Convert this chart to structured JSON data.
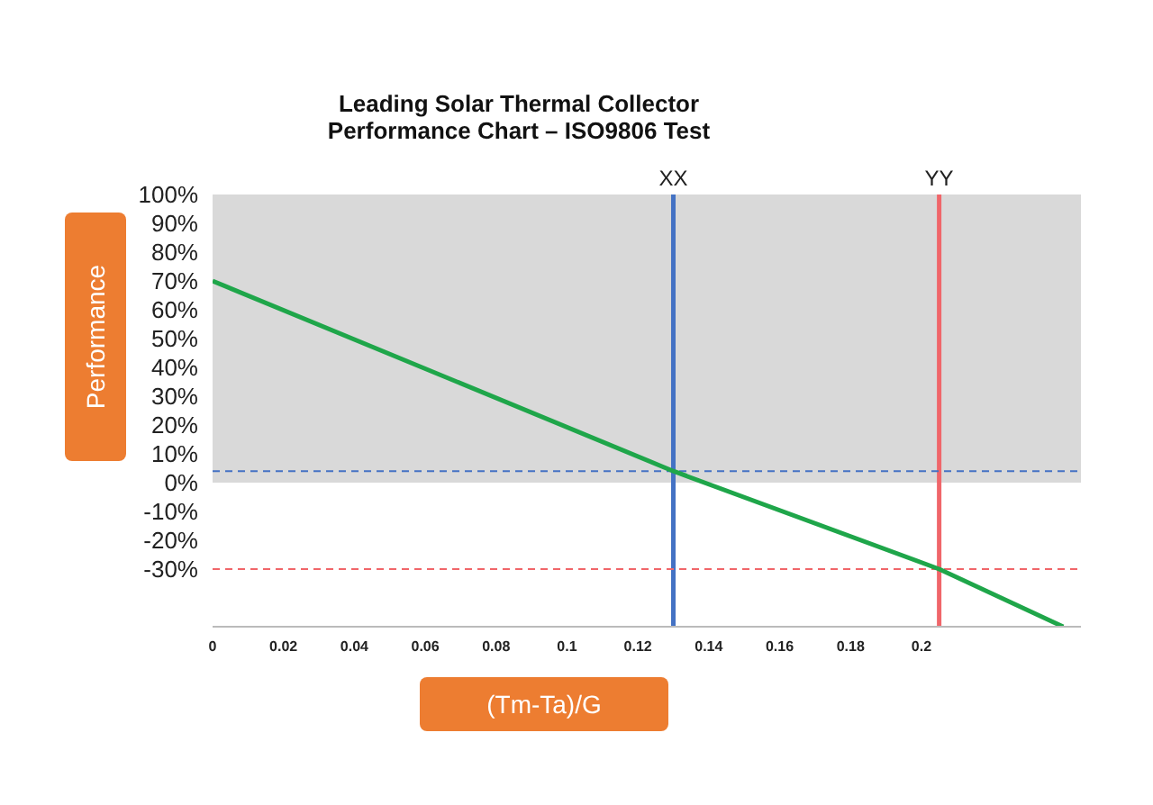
{
  "chart_data": {
    "type": "line",
    "title": "Leading Solar Thermal Collector\nPerformance Chart – ISO9806 Test",
    "xlabel": "(Tm-Ta)/G",
    "ylabel": "Performance",
    "x": [
      0,
      0.13,
      0.205,
      0.24
    ],
    "series": [
      {
        "color": "#1fa64a",
        "values": [
          70,
          4,
          -30,
          -50
        ]
      }
    ],
    "xlim": [
      0,
      0.245
    ],
    "xticks": [
      0,
      0.02,
      0.04,
      0.06,
      0.08,
      0.1,
      0.12,
      0.14,
      0.16,
      0.18,
      0.2
    ],
    "ylim": [
      -50,
      100
    ],
    "yticks": [
      {
        "value": -30,
        "label": "-30%"
      },
      {
        "value": -20,
        "label": "-20%"
      },
      {
        "value": -10,
        "label": "-10%"
      },
      {
        "value": 0,
        "label": "0%"
      },
      {
        "value": 10,
        "label": "10%"
      },
      {
        "value": 20,
        "label": "20%"
      },
      {
        "value": 30,
        "label": "30%"
      },
      {
        "value": 40,
        "label": "40%"
      },
      {
        "value": 50,
        "label": "50%"
      },
      {
        "value": 60,
        "label": "60%"
      },
      {
        "value": 70,
        "label": "70%"
      },
      {
        "value": 80,
        "label": "80%"
      },
      {
        "value": 90,
        "label": "90%"
      },
      {
        "value": 100,
        "label": "100%"
      }
    ],
    "ref_lines": [
      {
        "axis": "x",
        "value": 0.13,
        "label": "XX",
        "color": "#4472c4",
        "line_style": "solid"
      },
      {
        "axis": "x",
        "value": 0.205,
        "label": "YY",
        "color": "#f0666a",
        "line_style": "solid"
      },
      {
        "axis": "y",
        "value": 4,
        "color": "#4472c4",
        "line_style": "dashed"
      },
      {
        "axis": "y",
        "value": -30,
        "color": "#f0666a",
        "line_style": "dashed"
      }
    ],
    "bands": [
      {
        "axis": "y",
        "from": 0,
        "to": 100,
        "color": "#d9d9d9"
      }
    ],
    "grid": false,
    "legend": false,
    "marker": "none",
    "line_style": "solid"
  }
}
